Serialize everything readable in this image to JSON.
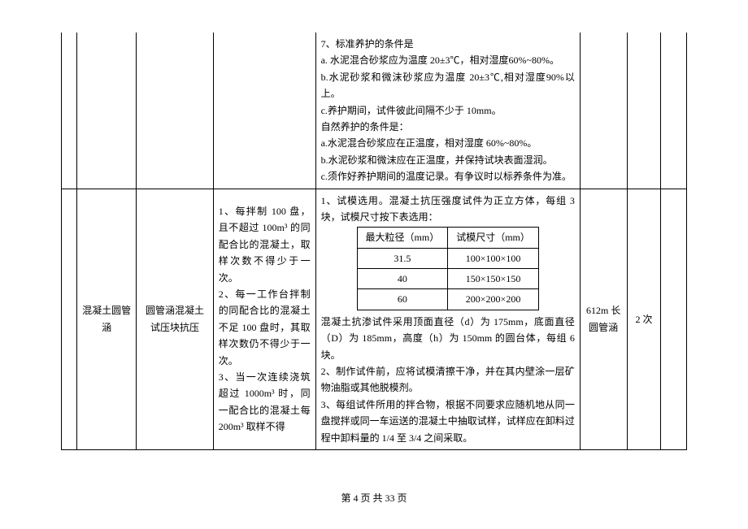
{
  "footer": "第 4 页 共 33 页",
  "row1": {
    "col4_lines": [
      "7、标准养护的条件是",
      "a. 水泥混合砂浆应为温度 20±3℃，相对湿度60%~80%。",
      "b.水泥砂浆和微沫砂浆应为温度 20±3℃,相对湿度90%以上。",
      "c.养护期间，试件彼此间隔不少于 10mm。",
      "自然养护的条件是：",
      "a.水泥混合砂浆应在正温度，相对湿度 60%~80%。",
      "b.水泥砂浆和微沫应在正温度，并保持试块表面湿润。",
      "c.须作好养护期间的温度记录。有争议时以标养条件为准。"
    ]
  },
  "row2": {
    "col1": "混凝土圆管涵",
    "col2": "圆管涵混凝土试压块抗压",
    "col3_lines": [
      "1、每拌制 100 盘，且不超过 100m³ 的同配合比的混凝土，取样次数不得少于一次。",
      "2、每一工作台拌制的同配合比的混凝土不足 100 盘时，其取样次数仍不得少于一次。",
      "3、当一次连续浇筑超过 1000m³ 时，同一配合比的混凝土每 200m³ 取样不得"
    ],
    "col4_before": "1、试模选用。混凝土抗压强度试件为正立方体，每组 3 块，试模尺寸按下表选用：",
    "inner_table": {
      "headers": [
        "最大粒径（mm）",
        "试模尺寸（mm）"
      ],
      "rows": [
        [
          "31.5",
          "100×100×100"
        ],
        [
          "40",
          "150×150×150"
        ],
        [
          "60",
          "200×200×200"
        ]
      ]
    },
    "col4_after_lines": [
      "混凝土抗渗试件采用顶面直径（d）为 175mm，底面直径（D）为 185mm，高度（h）为 150mm 的圆台体，每组 6 块。",
      "2、制作试件前，应将试模清擦干净，并在其内壁涂一层矿物油脂或其他脱模剂。",
      "3、每组试件所用的拌合物，根据不同要求应随机地从同一盘搅拌或同一车运送的混凝土中抽取试样，试样应在卸料过程中卸料量的 1/4 至 3/4 之间采取。"
    ],
    "col5": "612m 长圆管涵",
    "col6": "2 次"
  }
}
